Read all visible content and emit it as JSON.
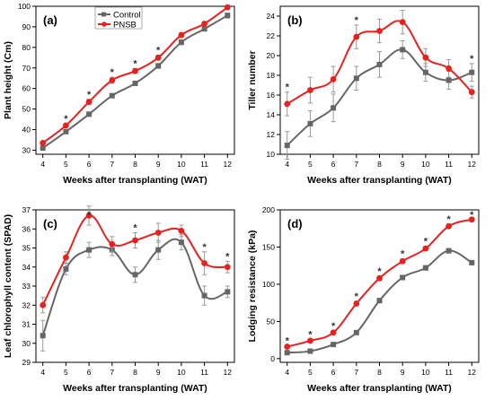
{
  "colors": {
    "control": "#666666",
    "pnsb": "#e8211f",
    "errorbar": "#999999"
  },
  "legend": {
    "entries": [
      "Control",
      "PNSB"
    ]
  },
  "chart_data": [
    {
      "type": "line",
      "panel": "(a)",
      "xlabel": "Weeks after transplanting (WAT)",
      "ylabel": "Plant height (Cm)",
      "x": [
        4,
        5,
        6,
        7,
        8,
        9,
        10,
        11,
        12
      ],
      "xlim": [
        3.7,
        12.3
      ],
      "ylim": [
        28,
        100
      ],
      "yticks": [
        30,
        40,
        50,
        60,
        70,
        80,
        90,
        100
      ],
      "series": [
        {
          "name": "Control",
          "values": [
            31,
            39,
            47.5,
            56.5,
            62.5,
            71,
            82.5,
            89,
            95.5
          ],
          "err": [
            0.8,
            0.8,
            1,
            1,
            1,
            1.2,
            1.2,
            1,
            1.2
          ]
        },
        {
          "name": "PNSB",
          "values": [
            33.5,
            42,
            53.5,
            64,
            68.5,
            75,
            86,
            91.5,
            99.5
          ],
          "err": [
            0.8,
            0.8,
            1.2,
            1.5,
            1.2,
            1.2,
            1.2,
            1,
            1
          ]
        }
      ],
      "significance": [
        5,
        6,
        7,
        8,
        9
      ]
    },
    {
      "type": "line",
      "panel": "(b)",
      "xlabel": "Weeks after transplanting (WAT)",
      "ylabel": "Tiller number",
      "x": [
        4,
        5,
        6,
        7,
        8,
        9,
        10,
        11,
        12
      ],
      "xlim": [
        3.7,
        12.3
      ],
      "ylim": [
        10,
        25
      ],
      "yticks": [
        10,
        12,
        14,
        16,
        18,
        20,
        22,
        24
      ],
      "series": [
        {
          "name": "Control",
          "values": [
            10.9,
            13.1,
            14.7,
            17.7,
            19.1,
            20.6,
            18.3,
            17.5,
            18.3
          ],
          "err": [
            1.4,
            1.3,
            1.4,
            1.2,
            1.3,
            0.9,
            0.9,
            0.9,
            0.9
          ]
        },
        {
          "name": "PNSB",
          "values": [
            15.1,
            16.5,
            17.6,
            21.9,
            22.5,
            23.4,
            19.8,
            18.7,
            16.3
          ],
          "err": [
            1.2,
            1.3,
            1.3,
            1.2,
            1.2,
            1.2,
            0.9,
            0.9,
            0.6
          ]
        }
      ],
      "significance": [
        4,
        7,
        12
      ]
    },
    {
      "type": "line",
      "panel": "(c)",
      "xlabel": "Weeks after transplanting (WAT)",
      "ylabel": "Leaf chlorophyll content (SPAD)",
      "x": [
        4,
        5,
        6,
        7,
        8,
        9,
        10,
        11,
        12
      ],
      "xlim": [
        3.7,
        12.3
      ],
      "ylim": [
        29,
        37
      ],
      "yticks": [
        29,
        30,
        31,
        32,
        33,
        34,
        35,
        36,
        37
      ],
      "series": [
        {
          "name": "Control",
          "values": [
            30.4,
            33.9,
            34.9,
            34.9,
            33.6,
            34.9,
            35.3,
            32.5,
            32.7
          ],
          "err": [
            0.8,
            0.3,
            0.4,
            0.3,
            0.4,
            0.5,
            0.4,
            0.5,
            0.3
          ]
        },
        {
          "name": "PNSB",
          "values": [
            32.0,
            34.5,
            36.7,
            35.2,
            35.4,
            35.8,
            35.9,
            34.2,
            34.0
          ],
          "err": [
            0.4,
            0.3,
            0.5,
            0.4,
            0.4,
            0.5,
            0.3,
            0.6,
            0.3
          ]
        }
      ],
      "significance": [
        6,
        8,
        11,
        12
      ]
    },
    {
      "type": "line",
      "panel": "(d)",
      "xlabel": "Weeks after transplanting (WAT)",
      "ylabel": "Lodging resistance (kPa)",
      "x": [
        4,
        5,
        6,
        7,
        8,
        9,
        10,
        11,
        12
      ],
      "xlim": [
        3.7,
        12.3
      ],
      "ylim": [
        -5,
        200
      ],
      "yticks": [
        0,
        50,
        100,
        150,
        200
      ],
      "series": [
        {
          "name": "Control",
          "values": [
            8,
            10,
            19,
            35,
            78,
            109,
            122,
            145,
            129
          ],
          "err": [
            1,
            1,
            2,
            2,
            3,
            3,
            3,
            3,
            3
          ]
        },
        {
          "name": "PNSB",
          "values": [
            16,
            24,
            35,
            74,
            108,
            131,
            148,
            178,
            187
          ],
          "err": [
            1.5,
            2,
            2,
            3,
            3,
            3,
            3,
            3,
            3
          ]
        }
      ],
      "significance": [
        4,
        5,
        6,
        7,
        8,
        9,
        10,
        11,
        12
      ]
    }
  ]
}
